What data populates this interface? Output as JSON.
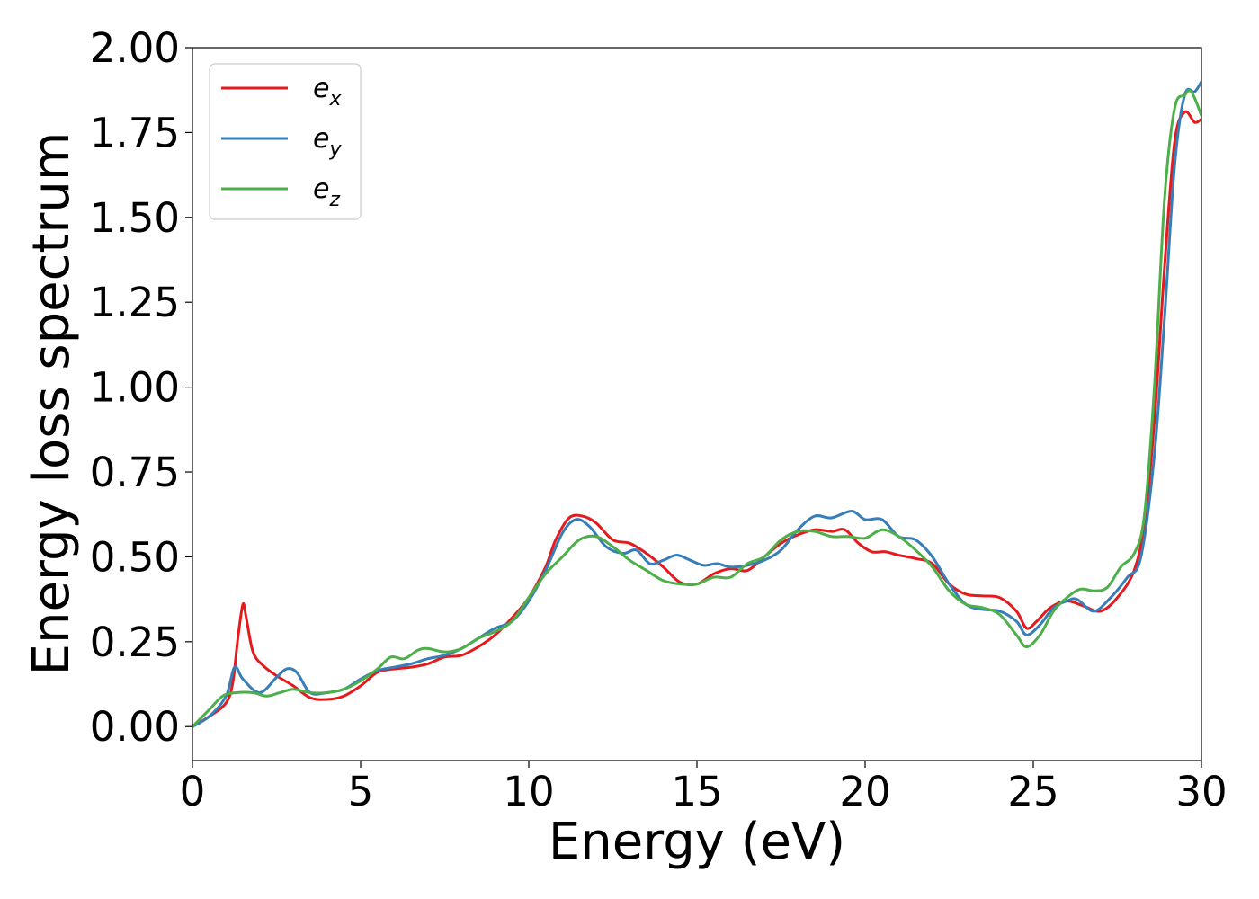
{
  "chart_data": {
    "type": "line",
    "xlabel": "Energy (eV)",
    "ylabel": "Energy loss spectrum",
    "xlim": [
      0,
      30
    ],
    "ylim": [
      -0.1,
      2.0
    ],
    "xticks": [
      "0",
      "5",
      "10",
      "15",
      "20",
      "25",
      "30"
    ],
    "yticks": [
      "0.00",
      "0.25",
      "0.50",
      "0.75",
      "1.00",
      "1.25",
      "1.50",
      "1.75",
      "2.00"
    ],
    "grid": false,
    "legend_position": "top-left",
    "series": [
      {
        "name": "e",
        "subscript": "x",
        "color": "#e41a1c",
        "points": [
          [
            0,
            0
          ],
          [
            0.5,
            0.03
          ],
          [
            1,
            0.07
          ],
          [
            1.2,
            0.13
          ],
          [
            1.35,
            0.26
          ],
          [
            1.5,
            0.36
          ],
          [
            1.6,
            0.32
          ],
          [
            1.8,
            0.22
          ],
          [
            2.1,
            0.18
          ],
          [
            2.5,
            0.15
          ],
          [
            3,
            0.12
          ],
          [
            3.5,
            0.085
          ],
          [
            4,
            0.08
          ],
          [
            4.5,
            0.09
          ],
          [
            5,
            0.12
          ],
          [
            5.5,
            0.16
          ],
          [
            6,
            0.17
          ],
          [
            6.5,
            0.175
          ],
          [
            7,
            0.185
          ],
          [
            7.5,
            0.205
          ],
          [
            8,
            0.21
          ],
          [
            8.5,
            0.235
          ],
          [
            9,
            0.27
          ],
          [
            9.5,
            0.32
          ],
          [
            10,
            0.38
          ],
          [
            10.5,
            0.47
          ],
          [
            10.8,
            0.55
          ],
          [
            11.2,
            0.615
          ],
          [
            11.6,
            0.62
          ],
          [
            12,
            0.6
          ],
          [
            12.5,
            0.55
          ],
          [
            13,
            0.54
          ],
          [
            13.5,
            0.51
          ],
          [
            14,
            0.47
          ],
          [
            14.5,
            0.425
          ],
          [
            15,
            0.42
          ],
          [
            15.5,
            0.45
          ],
          [
            16,
            0.465
          ],
          [
            16.5,
            0.46
          ],
          [
            17,
            0.5
          ],
          [
            17.5,
            0.54
          ],
          [
            18,
            0.565
          ],
          [
            18.5,
            0.58
          ],
          [
            19,
            0.575
          ],
          [
            19.4,
            0.58
          ],
          [
            19.8,
            0.54
          ],
          [
            20.2,
            0.515
          ],
          [
            20.6,
            0.515
          ],
          [
            21,
            0.505
          ],
          [
            21.5,
            0.495
          ],
          [
            22,
            0.48
          ],
          [
            22.5,
            0.42
          ],
          [
            23,
            0.39
          ],
          [
            23.5,
            0.385
          ],
          [
            24,
            0.38
          ],
          [
            24.5,
            0.34
          ],
          [
            24.8,
            0.29
          ],
          [
            25.1,
            0.31
          ],
          [
            25.5,
            0.35
          ],
          [
            26,
            0.37
          ],
          [
            26.5,
            0.355
          ],
          [
            27,
            0.34
          ],
          [
            27.5,
            0.38
          ],
          [
            28,
            0.46
          ],
          [
            28.3,
            0.6
          ],
          [
            28.6,
            0.9
          ],
          [
            28.9,
            1.35
          ],
          [
            29.2,
            1.72
          ],
          [
            29.5,
            1.81
          ],
          [
            29.8,
            1.78
          ],
          [
            30,
            1.79
          ]
        ]
      },
      {
        "name": "e",
        "subscript": "y",
        "color": "#377eb8",
        "points": [
          [
            0,
            0
          ],
          [
            0.5,
            0.03
          ],
          [
            1,
            0.09
          ],
          [
            1.25,
            0.175
          ],
          [
            1.5,
            0.14
          ],
          [
            2,
            0.1
          ],
          [
            2.5,
            0.145
          ],
          [
            2.8,
            0.17
          ],
          [
            3.1,
            0.16
          ],
          [
            3.5,
            0.1
          ],
          [
            4,
            0.1
          ],
          [
            4.5,
            0.11
          ],
          [
            5,
            0.14
          ],
          [
            5.5,
            0.165
          ],
          [
            6,
            0.175
          ],
          [
            6.5,
            0.185
          ],
          [
            7,
            0.2
          ],
          [
            7.5,
            0.21
          ],
          [
            8,
            0.23
          ],
          [
            8.5,
            0.26
          ],
          [
            9,
            0.29
          ],
          [
            9.5,
            0.31
          ],
          [
            10,
            0.37
          ],
          [
            10.5,
            0.46
          ],
          [
            11,
            0.57
          ],
          [
            11.4,
            0.61
          ],
          [
            11.8,
            0.59
          ],
          [
            12.3,
            0.53
          ],
          [
            12.8,
            0.51
          ],
          [
            13.2,
            0.52
          ],
          [
            13.6,
            0.48
          ],
          [
            14,
            0.49
          ],
          [
            14.4,
            0.505
          ],
          [
            14.8,
            0.49
          ],
          [
            15.2,
            0.475
          ],
          [
            15.6,
            0.48
          ],
          [
            16,
            0.47
          ],
          [
            16.5,
            0.475
          ],
          [
            17,
            0.49
          ],
          [
            17.5,
            0.52
          ],
          [
            18,
            0.58
          ],
          [
            18.5,
            0.62
          ],
          [
            19,
            0.615
          ],
          [
            19.6,
            0.635
          ],
          [
            20,
            0.61
          ],
          [
            20.5,
            0.61
          ],
          [
            21,
            0.56
          ],
          [
            21.5,
            0.55
          ],
          [
            22,
            0.5
          ],
          [
            22.5,
            0.42
          ],
          [
            23,
            0.36
          ],
          [
            23.5,
            0.345
          ],
          [
            24,
            0.34
          ],
          [
            24.5,
            0.31
          ],
          [
            24.8,
            0.27
          ],
          [
            25.2,
            0.3
          ],
          [
            25.6,
            0.35
          ],
          [
            26,
            0.37
          ],
          [
            26.3,
            0.375
          ],
          [
            26.8,
            0.34
          ],
          [
            27.3,
            0.38
          ],
          [
            27.8,
            0.44
          ],
          [
            28.2,
            0.5
          ],
          [
            28.6,
            0.8
          ],
          [
            28.9,
            1.2
          ],
          [
            29.2,
            1.65
          ],
          [
            29.5,
            1.86
          ],
          [
            29.8,
            1.87
          ],
          [
            30,
            1.9
          ]
        ]
      },
      {
        "name": "e",
        "subscript": "z",
        "color": "#4daf4a",
        "points": [
          [
            0,
            0
          ],
          [
            0.5,
            0.05
          ],
          [
            0.9,
            0.09
          ],
          [
            1.3,
            0.1
          ],
          [
            1.8,
            0.1
          ],
          [
            2.2,
            0.09
          ],
          [
            2.6,
            0.1
          ],
          [
            3,
            0.11
          ],
          [
            3.5,
            0.1
          ],
          [
            4,
            0.1
          ],
          [
            4.5,
            0.11
          ],
          [
            5,
            0.135
          ],
          [
            5.5,
            0.17
          ],
          [
            5.9,
            0.205
          ],
          [
            6.3,
            0.2
          ],
          [
            6.7,
            0.225
          ],
          [
            7,
            0.23
          ],
          [
            7.5,
            0.22
          ],
          [
            8,
            0.23
          ],
          [
            8.5,
            0.26
          ],
          [
            9,
            0.28
          ],
          [
            9.5,
            0.31
          ],
          [
            10,
            0.38
          ],
          [
            10.5,
            0.45
          ],
          [
            11,
            0.5
          ],
          [
            11.5,
            0.55
          ],
          [
            12,
            0.56
          ],
          [
            12.5,
            0.53
          ],
          [
            13,
            0.49
          ],
          [
            13.5,
            0.46
          ],
          [
            14,
            0.43
          ],
          [
            14.5,
            0.42
          ],
          [
            15,
            0.42
          ],
          [
            15.5,
            0.44
          ],
          [
            16,
            0.44
          ],
          [
            16.5,
            0.48
          ],
          [
            17,
            0.5
          ],
          [
            17.5,
            0.55
          ],
          [
            18,
            0.575
          ],
          [
            18.5,
            0.575
          ],
          [
            19,
            0.56
          ],
          [
            19.5,
            0.56
          ],
          [
            20,
            0.555
          ],
          [
            20.5,
            0.58
          ],
          [
            21,
            0.56
          ],
          [
            21.5,
            0.52
          ],
          [
            22,
            0.47
          ],
          [
            22.5,
            0.4
          ],
          [
            23,
            0.36
          ],
          [
            23.5,
            0.35
          ],
          [
            24,
            0.33
          ],
          [
            24.5,
            0.27
          ],
          [
            24.8,
            0.235
          ],
          [
            25.2,
            0.27
          ],
          [
            25.6,
            0.34
          ],
          [
            26,
            0.38
          ],
          [
            26.4,
            0.405
          ],
          [
            26.8,
            0.4
          ],
          [
            27.2,
            0.41
          ],
          [
            27.6,
            0.47
          ],
          [
            28,
            0.51
          ],
          [
            28.3,
            0.62
          ],
          [
            28.6,
            1.0
          ],
          [
            28.9,
            1.55
          ],
          [
            29.2,
            1.82
          ],
          [
            29.5,
            1.86
          ],
          [
            29.7,
            1.87
          ],
          [
            30,
            1.8
          ]
        ]
      }
    ]
  }
}
